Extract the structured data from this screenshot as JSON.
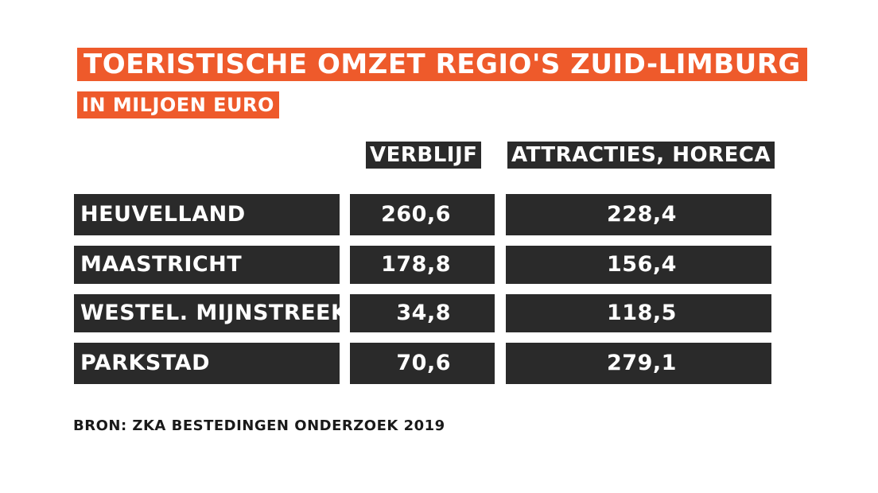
{
  "chart_data": {
    "type": "table",
    "title": "TOERISTISCHE OMZET REGIO'S ZUID-LIMBURG",
    "subtitle": "IN MILJOEN EURO",
    "columns": [
      "VERBLIJF",
      "ATTRACTIES, HORECA"
    ],
    "rows": [
      {
        "region": "HEUVELLAND",
        "verblijf": "260,6",
        "attracties": "228,4"
      },
      {
        "region": "MAASTRICHT",
        "verblijf": "178,8",
        "attracties": "156,4"
      },
      {
        "region": "WESTEL. MIJNSTREEK",
        "verblijf": "34,8",
        "attracties": "118,5"
      },
      {
        "region": "PARKSTAD",
        "verblijf": "70,6",
        "attracties": "279,1"
      }
    ],
    "source": "BRON: ZKA BESTEDINGEN ONDERZOEK 2019"
  },
  "colors": {
    "accent": "#ee5a2b",
    "cell_background": "#2a2a2a",
    "text_light": "#ffffff",
    "text_dark": "#1a1a1a"
  }
}
